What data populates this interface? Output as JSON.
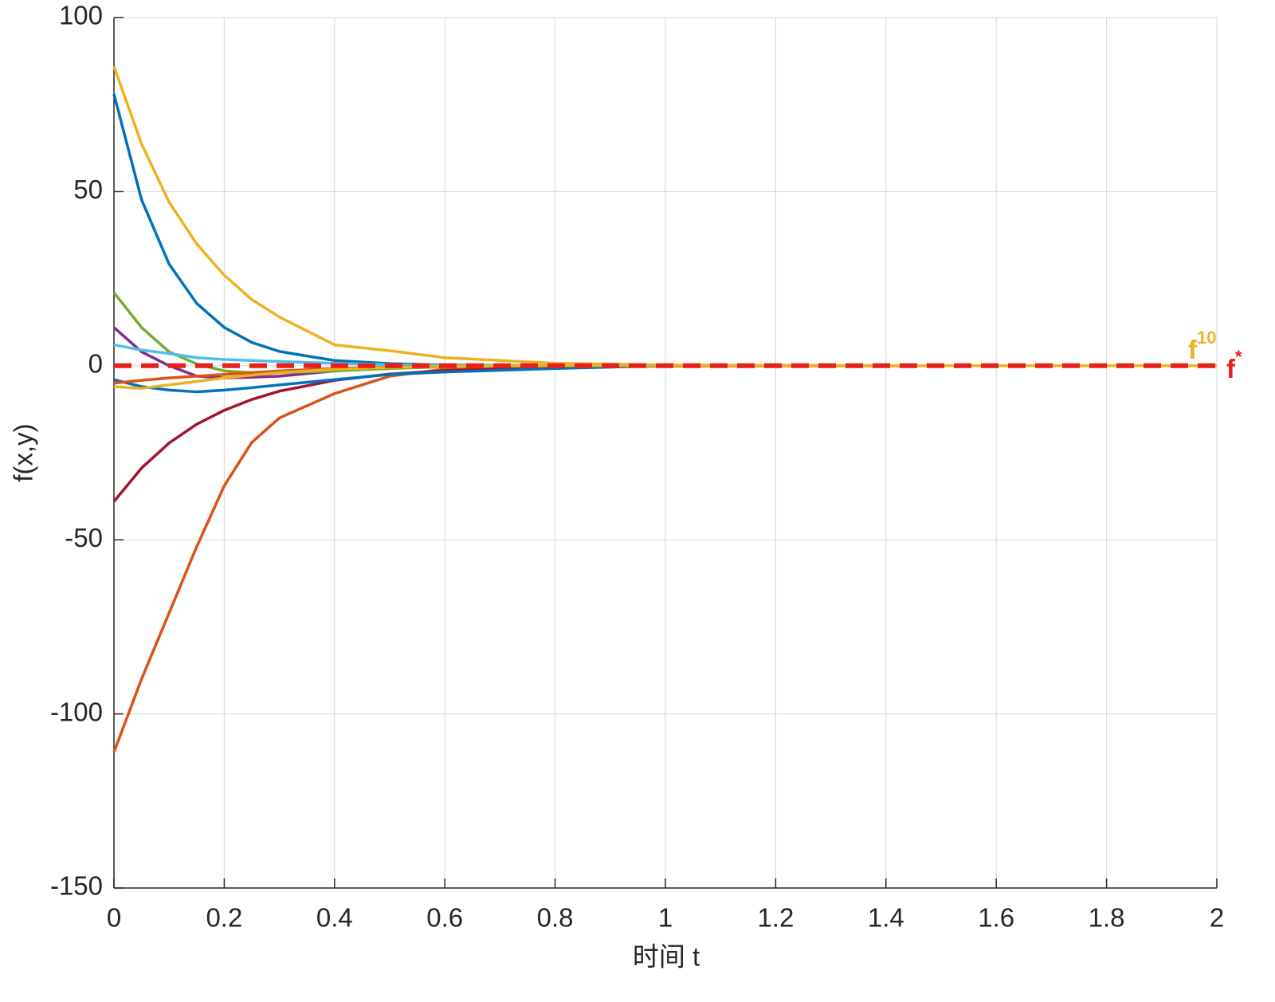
{
  "chart_data": {
    "type": "line",
    "xlabel": "时间 t",
    "ylabel": "f(x,y)",
    "x": [
      0,
      0.05,
      0.1,
      0.15,
      0.2,
      0.25,
      0.3,
      0.4,
      0.5,
      0.6,
      0.8,
      1,
      1.5,
      2
    ],
    "series": [
      {
        "color": "#0072bd",
        "values": [
          78,
          47.7,
          29.2,
          17.9,
          11,
          6.7,
          4.1,
          1.5,
          0.6,
          0.2,
          0,
          0,
          0,
          0
        ]
      },
      {
        "color": "#d95319",
        "values": [
          -111,
          -90,
          -71,
          -52,
          -34.5,
          -22,
          -15,
          -8,
          -3,
          -1,
          0,
          0,
          0,
          0
        ]
      },
      {
        "color": "#edb120",
        "values": [
          86,
          63.7,
          47,
          35,
          26,
          19,
          14,
          6,
          4.3,
          2.3,
          0.7,
          0.2,
          0,
          0
        ]
      },
      {
        "color": "#7e2f8e",
        "values": [
          11,
          4,
          0,
          -3,
          -3.5,
          -3.3,
          -3,
          -1.5,
          -0.5,
          -0.2,
          0,
          0,
          0,
          0
        ]
      },
      {
        "color": "#77ac30",
        "values": [
          21,
          11,
          4,
          0.5,
          -1.5,
          -2,
          -2,
          -1.5,
          -0.8,
          -0.3,
          0,
          0,
          0,
          0
        ]
      },
      {
        "color": "#4dbeee",
        "values": [
          6,
          4.5,
          3.5,
          2.3,
          1.8,
          1.5,
          1.2,
          0.7,
          0.3,
          0.1,
          0,
          0,
          0,
          0
        ]
      },
      {
        "color": "#a2142f",
        "values": [
          -39,
          -29.4,
          -22.2,
          -16.8,
          -12.8,
          -9.7,
          -7.3,
          -4.2,
          -2.4,
          -1.4,
          -0.4,
          -0.1,
          0,
          0
        ]
      },
      {
        "color": "#0072bd",
        "values": [
          -4,
          -6,
          -7,
          -7.5,
          -7,
          -6.3,
          -5.5,
          -4,
          -2.5,
          -1.8,
          -0.8,
          0,
          0,
          0
        ]
      },
      {
        "color": "#d95319",
        "values": [
          -5,
          -4.2,
          -3.5,
          -3,
          -2.5,
          -2,
          -1.5,
          -0.8,
          -0.4,
          -0.2,
          0,
          0,
          0,
          0
        ]
      },
      {
        "color": "#edb120",
        "label": "f",
        "label_sup": "10",
        "values": [
          -6,
          -6.5,
          -5.5,
          -4.5,
          -3.5,
          -2.7,
          -2,
          -1,
          -0.5,
          -0.2,
          0,
          0,
          0,
          0
        ]
      },
      {
        "color": "#e8201a",
        "dashed": true,
        "label": "f",
        "label_sup": "*",
        "values": [
          0,
          0,
          0,
          0,
          0,
          0,
          0,
          0,
          0,
          0,
          0,
          0,
          0,
          0
        ]
      }
    ],
    "xlim": [
      0,
      2
    ],
    "ylim": [
      -150,
      100
    ],
    "xticks": [
      0,
      0.2,
      0.4,
      0.6,
      0.8,
      1,
      1.2,
      1.4,
      1.6,
      1.8,
      2
    ],
    "yticks": [
      -150,
      -100,
      -50,
      0,
      50,
      100
    ],
    "grid": true
  }
}
